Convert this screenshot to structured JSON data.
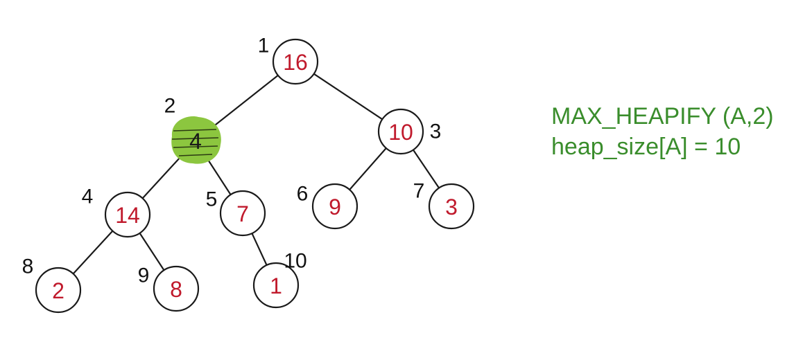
{
  "caption": {
    "line1": "MAX_HEAPIFY (A,2)",
    "line2": "heap_size[A]  = 10"
  },
  "heap": {
    "current_index": 2,
    "nodes": [
      {
        "index": "1",
        "value": "16"
      },
      {
        "index": "2",
        "value": "4"
      },
      {
        "index": "3",
        "value": "10"
      },
      {
        "index": "4",
        "value": "14"
      },
      {
        "index": "5",
        "value": "7"
      },
      {
        "index": "6",
        "value": "9"
      },
      {
        "index": "7",
        "value": "3"
      },
      {
        "index": "8",
        "value": "2"
      },
      {
        "index": "9",
        "value": "8"
      },
      {
        "index": "10",
        "value": "1"
      }
    ],
    "edges": [
      [
        "1",
        "2"
      ],
      [
        "1",
        "3"
      ],
      [
        "2",
        "4"
      ],
      [
        "2",
        "5"
      ],
      [
        "3",
        "6"
      ],
      [
        "3",
        "7"
      ],
      [
        "4",
        "8"
      ],
      [
        "4",
        "9"
      ],
      [
        "5",
        "10"
      ]
    ],
    "colors": {
      "value_text": "#c01a2c",
      "highlight": "#8cc63f",
      "caption": "#3a8d2c",
      "lines": "#1a1a1a"
    }
  }
}
